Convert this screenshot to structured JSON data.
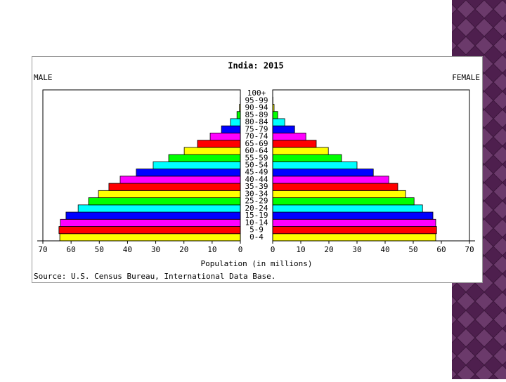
{
  "chart_data": {
    "type": "pyramid",
    "title": "India: 2015",
    "x_label": "Population (in millions)",
    "source": "Source: U.S. Census Bureau, International Data Base.",
    "categories": [
      "0-4",
      "5-9",
      "10-14",
      "15-19",
      "20-24",
      "25-29",
      "30-34",
      "35-39",
      "40-44",
      "45-49",
      "50-54",
      "55-59",
      "60-64",
      "65-69",
      "70-74",
      "75-79",
      "80-84",
      "85-89",
      "90-94",
      "95-99",
      "100+"
    ],
    "colors": [
      "#ffff00",
      "#ff0000",
      "#ff00ff",
      "#0000ff",
      "#00ffff",
      "#00ff00",
      "#ffff00",
      "#ff0000",
      "#ff00ff",
      "#0000ff",
      "#00ffff",
      "#00ff00",
      "#ffff00",
      "#ff0000",
      "#ff00ff",
      "#0000ff",
      "#00ffff",
      "#00ff00",
      "#ffff00",
      "#ff0000",
      "#ff00ff"
    ],
    "series": [
      {
        "name": "MALE",
        "values": [
          64.0,
          64.3,
          63.8,
          61.8,
          57.5,
          53.8,
          50.3,
          46.6,
          42.6,
          36.9,
          30.9,
          25.4,
          19.9,
          15.2,
          10.7,
          6.7,
          3.5,
          1.2,
          0.3,
          0.05,
          0.01
        ]
      },
      {
        "name": "FEMALE",
        "values": [
          58.0,
          58.3,
          58.0,
          57.0,
          53.3,
          50.3,
          47.3,
          44.5,
          41.3,
          35.8,
          30.0,
          24.5,
          19.8,
          15.5,
          11.8,
          7.8,
          4.3,
          1.8,
          0.5,
          0.1,
          0.02
        ]
      }
    ],
    "xlim": [
      0,
      70
    ],
    "xticks": [
      0,
      10,
      20,
      30,
      40,
      50,
      60,
      70
    ]
  }
}
